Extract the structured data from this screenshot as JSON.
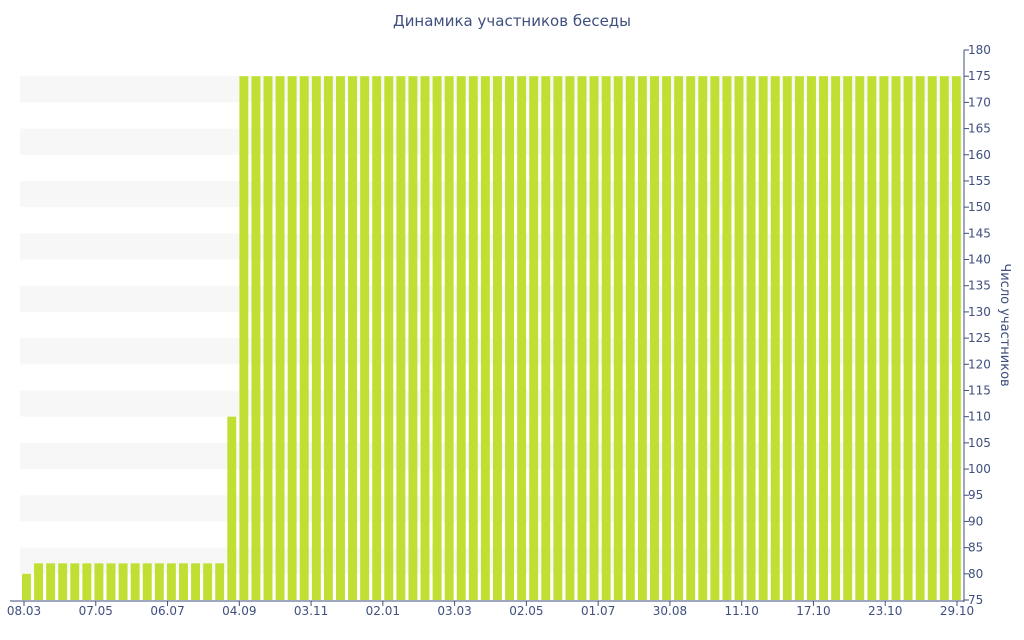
{
  "chart_data": {
    "type": "bar",
    "title": "Динамика участников беседы",
    "xlabel": "",
    "ylabel": "Число участников",
    "ylim": [
      75,
      180
    ],
    "y_ticks": [
      75,
      80,
      85,
      90,
      95,
      100,
      105,
      110,
      115,
      120,
      125,
      130,
      135,
      140,
      145,
      150,
      155,
      160,
      165,
      170,
      175,
      180
    ],
    "x_tick_labels": [
      "08.03",
      "07.05",
      "06.07",
      "04.09",
      "03.11",
      "02.01",
      "03.03",
      "02.05",
      "01.07",
      "30.08",
      "11.10",
      "17.10",
      "23.10",
      "29.10"
    ],
    "y_axis_side": "right",
    "grid": "horizontal bands",
    "legend": "none",
    "bar_color": "#bfe032",
    "band_color": "#f7f7f7",
    "values": [
      80,
      82,
      82,
      82,
      82,
      82,
      82,
      82,
      82,
      82,
      82,
      82,
      82,
      82,
      82,
      82,
      82,
      110,
      175,
      175,
      175,
      175,
      175,
      175,
      175,
      175,
      175,
      175,
      175,
      175,
      175,
      175,
      175,
      175,
      175,
      175,
      175,
      175,
      175,
      175,
      175,
      175,
      175,
      175,
      175,
      175,
      175,
      175,
      175,
      175,
      175,
      175,
      175,
      175,
      175,
      175,
      175,
      175,
      175,
      175,
      175,
      175,
      175,
      175,
      175,
      175,
      175,
      175,
      175,
      175,
      175,
      175,
      175,
      175,
      175,
      175,
      175,
      175
    ]
  }
}
